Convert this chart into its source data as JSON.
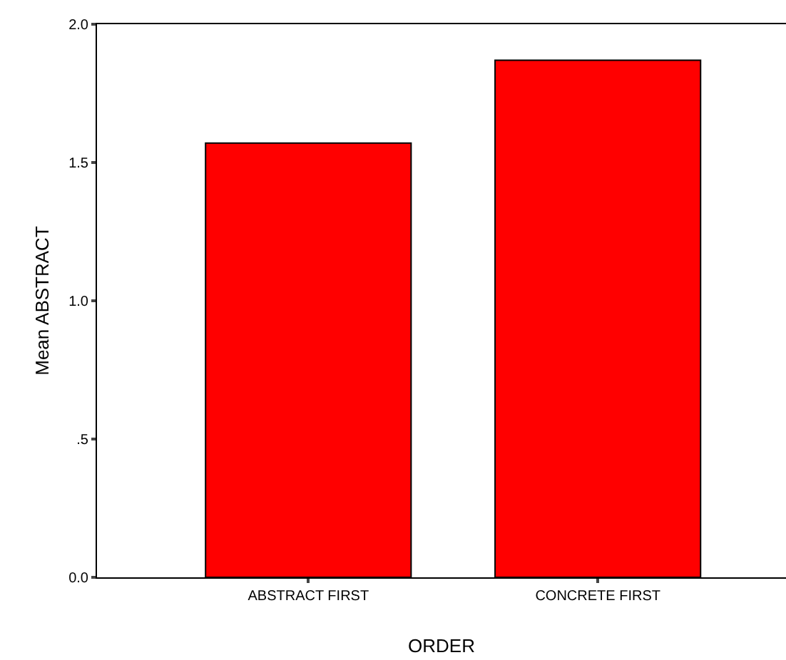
{
  "chart_data": {
    "type": "bar",
    "xlabel": "ORDER",
    "ylabel": "Mean ABSTRACT",
    "categories": [
      "ABSTRACT FIRST",
      "CONCRETE FIRST"
    ],
    "values": [
      1.57,
      1.87
    ],
    "color": "#ff0000",
    "ylim": [
      0,
      2.0
    ],
    "yticks": [
      {
        "value": 0,
        "label": "0.0"
      },
      {
        "value": 0.5,
        "label": ".5"
      },
      {
        "value": 1.0,
        "label": "1.0"
      },
      {
        "value": 1.5,
        "label": "1.5"
      },
      {
        "value": 2.0,
        "label": "2.0"
      }
    ]
  }
}
